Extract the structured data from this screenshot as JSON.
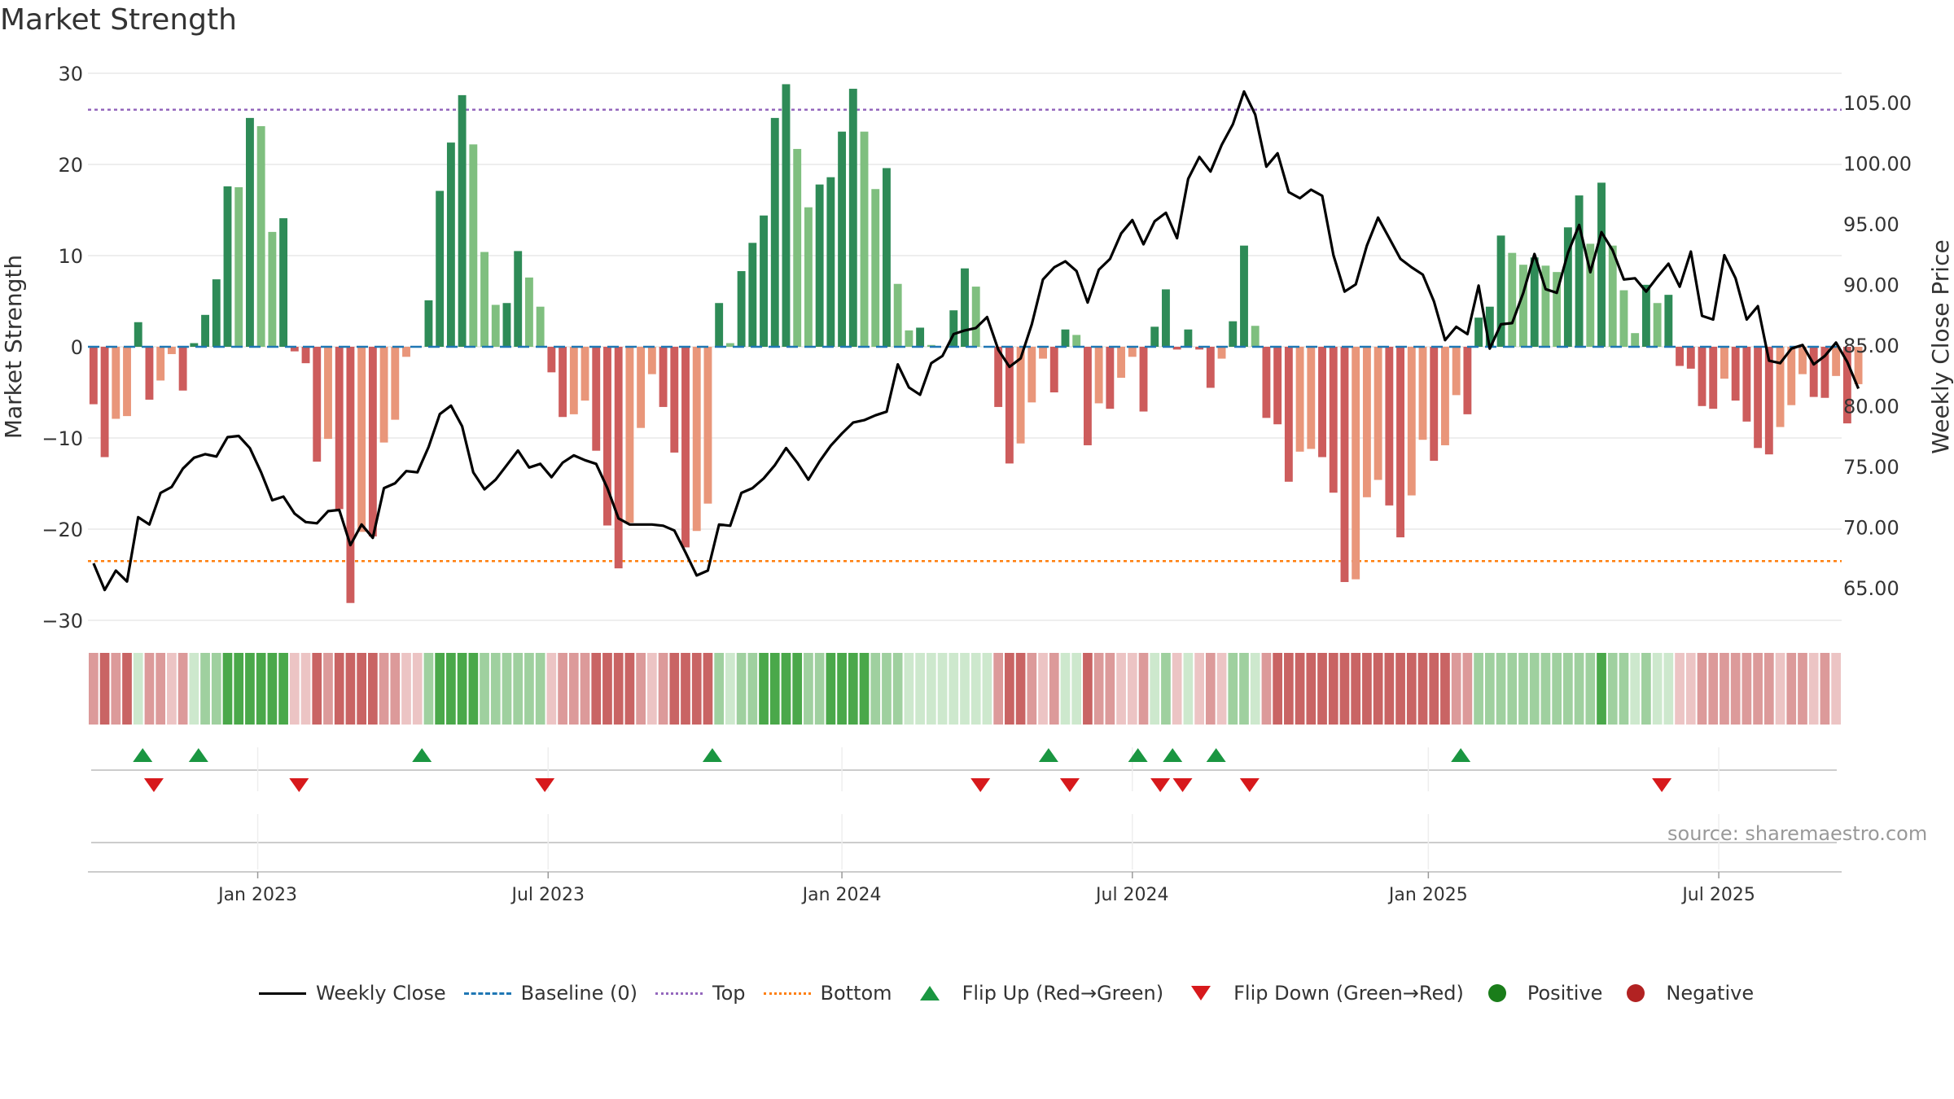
{
  "chart_data": {
    "type": "bar",
    "title": "Market Strength",
    "ylabel": "Market Strength",
    "ylabel_right": "Weekly Close Price",
    "ylim": [
      -30,
      30
    ],
    "ylim_right": [
      62.3,
      107.4
    ],
    "yticks": [
      30,
      20,
      10,
      0,
      -10,
      -20,
      -30
    ],
    "ytick_labels": [
      "30",
      "20",
      "10",
      "0",
      "−10",
      "−20",
      "−30"
    ],
    "yticks_right": [
      105,
      100,
      95,
      90,
      85,
      80,
      75,
      70,
      65
    ],
    "ytick_labels_right": [
      "105.00",
      "100.00",
      "95.00",
      "90.00",
      "85.00",
      "80.00",
      "75.00",
      "70.00",
      "65.00"
    ],
    "top_level": 26,
    "bottom_level": -23.5,
    "x_weeks": 157,
    "x_ticks": [
      {
        "label": "Jan 2023",
        "week": 14.7
      },
      {
        "label": "Jul 2023",
        "week": 40.7
      },
      {
        "label": "Jan 2024",
        "week": 67.0
      },
      {
        "label": "Jul 2024",
        "week": 93.0
      },
      {
        "label": "Jan 2025",
        "week": 119.5
      },
      {
        "label": "Jul 2025",
        "week": 145.5
      }
    ],
    "strength": [
      -6.3,
      -12.1,
      -7.9,
      -7.6,
      2.7,
      -5.8,
      -3.7,
      -0.8,
      -4.8,
      0.4,
      3.5,
      7.4,
      17.6,
      17.5,
      25.1,
      24.2,
      12.6,
      14.1,
      -0.5,
      -1.8,
      -12.6,
      -10.1,
      -17.8,
      -28.1,
      -20.3,
      -20.8,
      -10.5,
      -8.0,
      -1.1,
      0,
      5.1,
      17.1,
      22.4,
      27.6,
      22.2,
      10.4,
      4.6,
      4.8,
      10.5,
      7.6,
      4.4,
      -2.8,
      -7.7,
      -7.4,
      -5.9,
      -11.4,
      -19.6,
      -24.3,
      -19.3,
      -8.9,
      -3.0,
      -6.6,
      -11.6,
      -22.0,
      -20.2,
      -17.2,
      4.8,
      0.4,
      8.3,
      11.4,
      14.4,
      25.1,
      28.8,
      21.7,
      15.3,
      17.8,
      18.6,
      23.6,
      28.3,
      23.6,
      17.3,
      19.6,
      6.9,
      1.8,
      2.1,
      0.2,
      0,
      4.0,
      8.6,
      6.6,
      0,
      -6.6,
      -12.8,
      -10.6,
      -6.1,
      -1.3,
      -5.0,
      1.9,
      1.3,
      -10.8,
      -6.2,
      -6.8,
      -3.4,
      -1.1,
      -7.1,
      2.2,
      6.3,
      -0.3,
      1.9,
      -0.3,
      -4.5,
      -1.3,
      2.8,
      11.1,
      2.3,
      -7.8,
      -8.5,
      -14.8,
      -11.5,
      -11.2,
      -12.1,
      -16.0,
      -25.8,
      -25.5,
      -16.5,
      -14.6,
      -17.4,
      -20.9,
      -16.3,
      -10.2,
      -12.5,
      -10.8,
      -5.3,
      -7.4,
      3.2,
      4.4,
      12.2,
      10.3,
      9.0,
      9.8,
      8.9,
      8.2,
      13.1,
      16.6,
      11.3,
      18.0,
      11.1,
      6.2,
      1.5,
      6.8,
      4.8,
      5.7,
      -2.1,
      -2.4,
      -6.5,
      -6.8,
      -3.5,
      -5.9,
      -8.2,
      -11.1,
      -11.8,
      -8.8,
      -6.4,
      -3.0,
      -5.5,
      -5.6,
      -3.2,
      -8.4,
      -4.1
    ],
    "price": [
      67.0,
      64.8,
      66.4,
      65.5,
      70.8,
      70.2,
      72.8,
      73.3,
      74.8,
      75.7,
      76.0,
      75.8,
      77.4,
      77.5,
      76.5,
      74.5,
      72.2,
      72.5,
      71.1,
      70.4,
      70.3,
      71.3,
      71.4,
      68.5,
      70.2,
      69.1,
      73.2,
      73.6,
      74.6,
      74.5,
      76.6,
      79.3,
      80.0,
      78.3,
      74.5,
      73.1,
      73.9,
      75.1,
      76.3,
      74.9,
      75.2,
      74.1,
      75.3,
      75.9,
      75.5,
      75.2,
      73.2,
      70.7,
      70.2,
      70.2,
      70.2,
      70.1,
      69.7,
      67.9,
      66.0,
      66.4,
      70.2,
      70.1,
      72.8,
      73.2,
      74.0,
      75.1,
      76.5,
      75.3,
      73.9,
      75.4,
      76.7,
      77.7,
      78.6,
      78.8,
      79.2,
      79.5,
      83.4,
      81.5,
      80.9,
      83.5,
      84.1,
      85.9,
      86.2,
      86.4,
      87.3,
      84.6,
      83.2,
      83.9,
      86.7,
      90.4,
      91.4,
      91.9,
      91.1,
      88.5,
      91.2,
      92.1,
      94.2,
      95.3,
      93.3,
      95.2,
      95.9,
      93.8,
      98.7,
      100.5,
      99.3,
      101.5,
      103.2,
      105.9,
      104.0,
      99.7,
      100.8,
      97.6,
      97.1,
      97.8,
      97.3,
      92.4,
      89.4,
      90.0,
      93.2,
      95.5,
      93.8,
      92.1,
      91.4,
      90.8,
      88.6,
      85.4,
      86.5,
      85.9,
      89.9,
      84.7,
      86.7,
      86.8,
      89.3,
      92.5,
      89.6,
      89.3,
      92.6,
      94.9,
      91.0,
      94.3,
      92.8,
      90.4,
      90.5,
      89.4,
      90.6,
      91.7,
      89.8,
      92.7,
      87.4,
      87.1,
      92.4,
      90.5,
      87.1,
      88.2,
      83.7,
      83.5,
      84.7,
      85.0,
      83.4,
      84.1,
      85.2,
      83.6,
      81.4
    ],
    "gauge_levels": [
      2,
      3,
      2,
      3,
      1,
      2,
      2,
      1,
      2,
      1,
      2,
      2,
      3,
      3,
      3,
      3,
      3,
      3,
      1,
      1,
      3,
      2,
      3,
      3,
      3,
      3,
      2,
      2,
      1,
      1,
      2,
      3,
      3,
      3,
      3,
      2,
      2,
      2,
      2,
      2,
      2,
      1,
      2,
      2,
      2,
      3,
      3,
      3,
      3,
      2,
      1,
      2,
      3,
      3,
      3,
      3,
      2,
      1,
      2,
      2,
      3,
      3,
      3,
      3,
      2,
      2,
      3,
      3,
      3,
      3,
      2,
      2,
      2,
      1,
      1,
      1,
      1,
      1,
      1,
      1,
      1,
      2,
      3,
      3,
      2,
      1,
      2,
      1,
      1,
      3,
      2,
      2,
      1,
      1,
      2,
      1,
      2,
      1,
      1,
      1,
      2,
      1,
      2,
      2,
      1,
      2,
      3,
      3,
      3,
      3,
      3,
      3,
      3,
      3,
      3,
      3,
      3,
      3,
      3,
      3,
      3,
      3,
      2,
      2,
      2,
      2,
      2,
      2,
      2,
      2,
      2,
      2,
      2,
      2,
      2,
      3,
      2,
      2,
      1,
      2,
      1,
      1,
      1,
      1,
      2,
      2,
      2,
      2,
      2,
      2,
      2,
      1,
      2,
      2,
      1,
      2,
      1
    ],
    "flip_up_weeks": [
      4.4,
      9.4,
      29.4,
      55.4,
      85.5,
      93.5,
      96.6,
      100.5,
      122.4
    ],
    "flip_down_weeks": [
      5.4,
      18.4,
      40.4,
      79.4,
      87.4,
      95.5,
      97.5,
      103.5,
      140.4
    ],
    "source": "source: sharemaestro.com",
    "legend": [
      "Weekly Close",
      "Baseline (0)",
      "Top",
      "Bottom",
      "Flip Up (Red→Green)",
      "Flip Down (Green→Red)",
      "Positive",
      "Negative"
    ],
    "colors": {
      "pos_dark": "#2e8b57",
      "pos_light": "#7fbf7f",
      "neg_dark": "#cd5c5c",
      "neg_light": "#e9967a",
      "top": "#9467bd",
      "bottom": "#ff7f0e",
      "baseline": "#1f77b4",
      "flip_up": "#1a9641",
      "flip_down": "#d7191c",
      "gauge_pos": [
        "#cde8cd",
        "#9fd09f",
        "#4aa84a"
      ],
      "gauge_neg": [
        "#ecc4c4",
        "#dc9a9a",
        "#c96464"
      ]
    }
  }
}
